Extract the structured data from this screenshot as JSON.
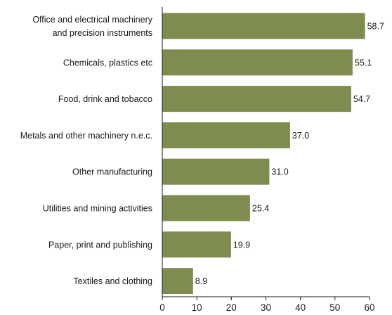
{
  "chart_data": {
    "type": "bar",
    "orientation": "horizontal",
    "categories": [
      [
        "Office and electrical machinery",
        "and precision instruments"
      ],
      [
        "Chemicals, plastics etc"
      ],
      [
        "Food, drink and tobacco"
      ],
      [
        "Metals and other machinery n.e.c."
      ],
      [
        "Other manufacturing"
      ],
      [
        "Utilities and mining activities"
      ],
      [
        "Paper, print and publishing"
      ],
      [
        "Textiles and clothing"
      ]
    ],
    "values": [
      58.7,
      55.1,
      54.7,
      37.0,
      31.0,
      25.4,
      19.9,
      8.9
    ],
    "value_labels": [
      "58.7",
      "55.1",
      "54.7",
      "37.0",
      "31.0",
      "25.4",
      "19.9",
      "8.9"
    ],
    "xlim": [
      0,
      60
    ],
    "xticks": [
      0,
      10,
      20,
      30,
      40,
      50,
      60
    ],
    "title": "",
    "xlabel": "",
    "ylabel": "",
    "grid": false,
    "legend": "none",
    "bar_color": "#7e8c4f",
    "axis_color": "#1a1a1a"
  }
}
